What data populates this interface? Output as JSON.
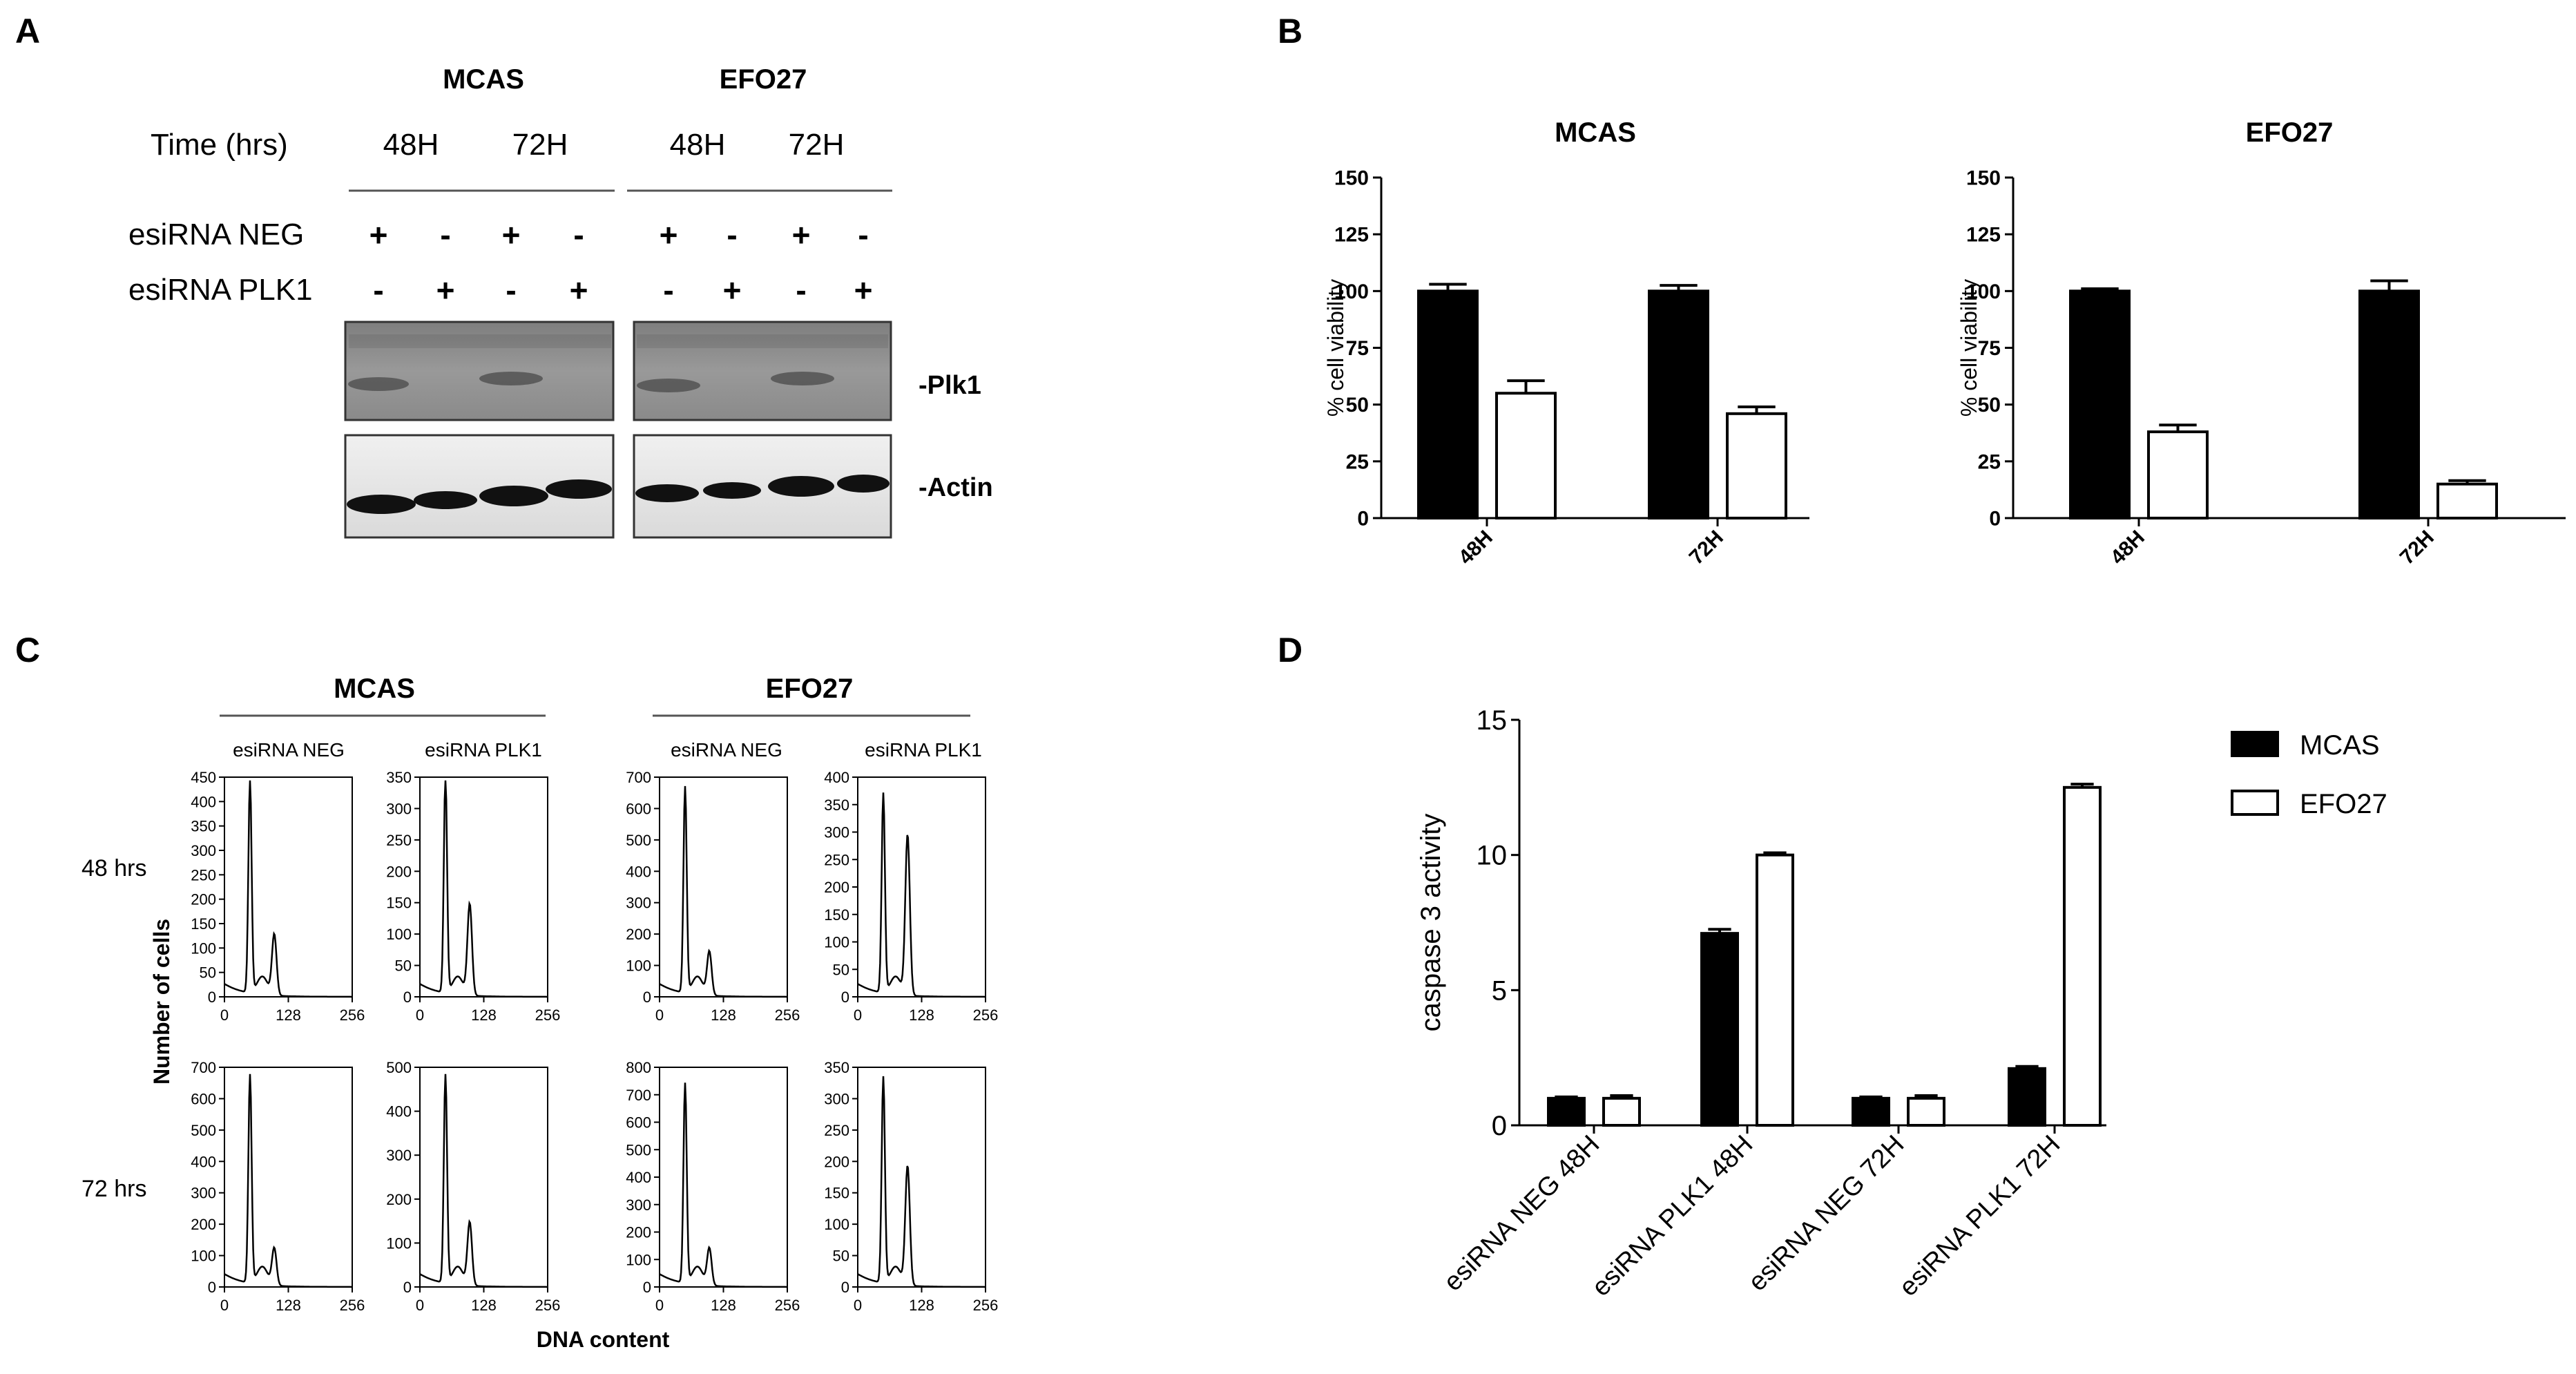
{
  "panel_letters": [
    "A",
    "B",
    "C",
    "D"
  ],
  "western": {
    "col_groups": [
      "MCAS",
      "EFO27"
    ],
    "time_label": "Time (hrs)",
    "times": [
      "48H",
      "72H",
      "48H",
      "72H"
    ],
    "row_labels": [
      "esiRNA NEG",
      "esiRNA PLK1"
    ],
    "neg_signs": [
      "+",
      "-",
      "+",
      "-",
      "+",
      "-",
      "+",
      "-"
    ],
    "plk_signs": [
      "-",
      "+",
      "-",
      "+",
      "-",
      "+",
      "-",
      "+"
    ],
    "blot_labels": [
      "-Plk1",
      "-Actin"
    ]
  },
  "flow": {
    "groups": [
      "MCAS",
      "EFO27"
    ],
    "conditions": [
      "esiRNA NEG",
      "esiRNA PLK1",
      "esiRNA NEG",
      "esiRNA PLK1"
    ],
    "row_labels": [
      "48 hrs",
      "72 hrs"
    ],
    "ylabel": "Number of cells",
    "xlabel": "DNA content",
    "x_ticks": [
      "0",
      "128",
      "256"
    ],
    "y_ticks": [
      [
        "0",
        "50",
        "100",
        "150",
        "200",
        "250",
        "300",
        "350",
        "400",
        "450"
      ],
      [
        "0",
        "50",
        "100",
        "150",
        "200",
        "250",
        "300",
        "350"
      ],
      [
        "0",
        "100",
        "200",
        "300",
        "400",
        "500",
        "600",
        "700"
      ],
      [
        "0",
        "50",
        "100",
        "150",
        "200",
        "250",
        "300",
        "350",
        "400"
      ],
      [
        "0",
        "100",
        "200",
        "300",
        "400",
        "500",
        "600",
        "700"
      ],
      [
        "0",
        "100",
        "200",
        "300",
        "400",
        "500"
      ],
      [
        "0",
        "100",
        "200",
        "300",
        "400",
        "500",
        "600",
        "700",
        "800"
      ],
      [
        "0",
        "50",
        "100",
        "150",
        "200",
        "250",
        "300",
        "350"
      ]
    ]
  },
  "chart_data": [
    {
      "type": "bar",
      "title": "MCAS",
      "categories": [
        "48H",
        "72H"
      ],
      "series": [
        {
          "values": [
            100,
            100
          ],
          "errors": [
            3,
            2.5
          ],
          "fill": "#000000"
        },
        {
          "values": [
            55,
            46
          ],
          "errors": [
            5.5,
            3
          ],
          "fill": "#ffffff"
        }
      ],
      "xlabel": "",
      "ylabel": "% cell viability",
      "ylim": [
        0,
        150
      ],
      "yticks": [
        "0",
        "25",
        "50",
        "75",
        "100",
        "125",
        "150"
      ]
    },
    {
      "type": "bar",
      "title": "EFO27",
      "categories": [
        "48H",
        "72H"
      ],
      "series": [
        {
          "values": [
            100,
            100
          ],
          "errors": [
            1,
            4.5
          ],
          "fill": "#000000"
        },
        {
          "values": [
            38,
            15
          ],
          "errors": [
            3,
            1.5
          ],
          "fill": "#ffffff"
        }
      ],
      "xlabel": "",
      "ylabel": "% cell viability",
      "ylim": [
        0,
        150
      ],
      "yticks": [
        "0",
        "25",
        "50",
        "75",
        "100",
        "125",
        "150"
      ]
    },
    {
      "type": "bar",
      "title": "",
      "categories": [
        "esiRNA NEG 48H",
        "esiRNA PLK1 48H",
        "esiRNA NEG 72H",
        "esiRNA PLK1 72H"
      ],
      "series": [
        {
          "name": "MCAS",
          "values": [
            1.0,
            7.1,
            1.0,
            2.1
          ],
          "errors": [
            0.05,
            0.15,
            0.05,
            0.08
          ],
          "fill": "#000000"
        },
        {
          "name": "EFO27",
          "values": [
            1.0,
            10.0,
            1.0,
            12.5
          ],
          "errors": [
            0.1,
            0.08,
            0.1,
            0.12
          ],
          "fill": "#ffffff"
        }
      ],
      "xlabel": "",
      "ylabel": "caspase 3 activity",
      "ylim": [
        0,
        15
      ],
      "yticks": [
        "0",
        "5",
        "10",
        "15"
      ],
      "legend": "top-right"
    }
  ]
}
